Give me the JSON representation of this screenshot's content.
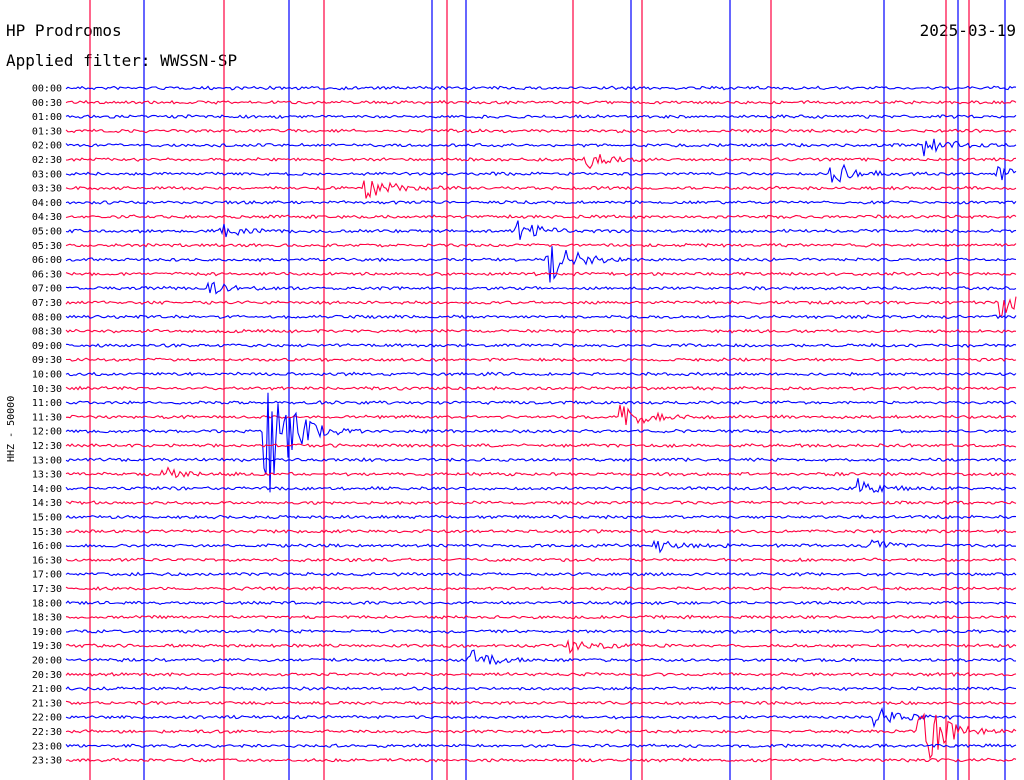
{
  "header": {
    "station": "HP Prodromos",
    "filter": "Applied filter: WWSSN-SP",
    "date": "2025-03-19"
  },
  "chart_data": {
    "type": "line",
    "title": "HP Prodromos",
    "channel_label": "HHZ - 50000",
    "row_labels": [
      "00:00",
      "00:30",
      "01:00",
      "01:30",
      "02:00",
      "02:30",
      "03:00",
      "03:30",
      "04:00",
      "04:30",
      "05:00",
      "05:30",
      "06:00",
      "06:30",
      "07:00",
      "07:30",
      "08:00",
      "08:30",
      "09:00",
      "09:30",
      "10:00",
      "10:30",
      "11:00",
      "11:30",
      "12:00",
      "12:30",
      "13:00",
      "13:30",
      "14:00",
      "14:30",
      "15:00",
      "15:30",
      "16:00",
      "16:30",
      "17:00",
      "17:30",
      "18:00",
      "18:30",
      "19:00",
      "19:30",
      "20:00",
      "20:30",
      "21:00",
      "21:30",
      "22:00",
      "22:30",
      "23:00",
      "23:30"
    ],
    "trace_colors": [
      "#0000ff",
      "#ff0040"
    ],
    "x_unit": "minutes within 30-minute row",
    "xlim": [
      0,
      30
    ],
    "events": [
      {
        "row": 4,
        "minute": 27.2,
        "amp": 10
      },
      {
        "row": 5,
        "minute": 16.5,
        "amp": 8
      },
      {
        "row": 6,
        "minute": 24.2,
        "amp": 14
      },
      {
        "row": 6,
        "minute": 29.4,
        "amp": 8
      },
      {
        "row": 7,
        "minute": 9.5,
        "amp": 14
      },
      {
        "row": 10,
        "minute": 14.3,
        "amp": 10
      },
      {
        "row": 10,
        "minute": 5.0,
        "amp": 6
      },
      {
        "row": 12,
        "minute": 15.3,
        "amp": 22
      },
      {
        "row": 14,
        "minute": 4.6,
        "amp": 5
      },
      {
        "row": 15,
        "minute": 29.6,
        "amp": 18
      },
      {
        "row": 23,
        "minute": 17.6,
        "amp": 16
      },
      {
        "row": 24,
        "minute": 6.4,
        "amp": 70
      },
      {
        "row": 27,
        "minute": 3.1,
        "amp": 6
      },
      {
        "row": 28,
        "minute": 25.1,
        "amp": 9
      },
      {
        "row": 32,
        "minute": 18.7,
        "amp": 6
      },
      {
        "row": 32,
        "minute": 25.5,
        "amp": 5
      },
      {
        "row": 39,
        "minute": 16.0,
        "amp": 8
      },
      {
        "row": 40,
        "minute": 12.8,
        "amp": 10
      },
      {
        "row": 44,
        "minute": 25.6,
        "amp": 10
      },
      {
        "row": 45,
        "minute": 27.0,
        "amp": 40
      }
    ]
  }
}
